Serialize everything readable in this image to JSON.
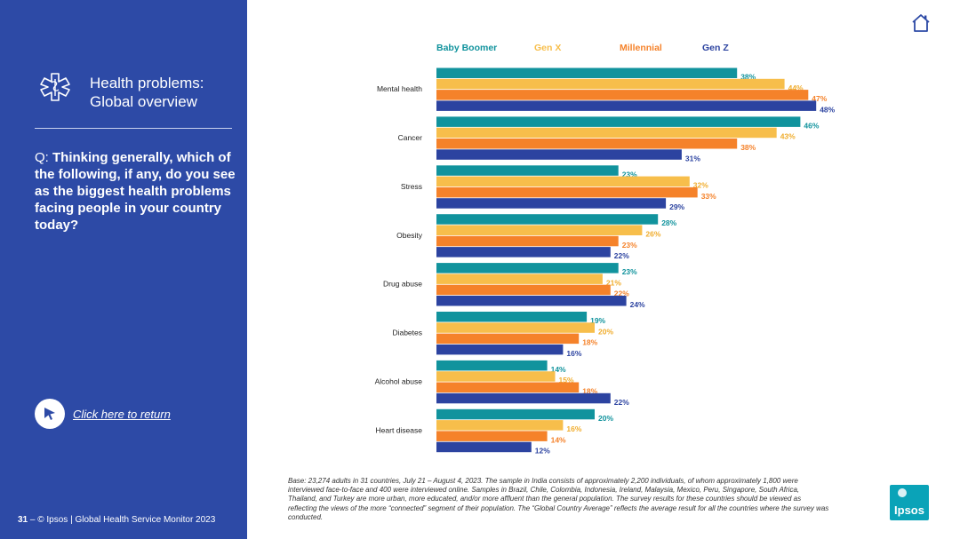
{
  "sidebar": {
    "title_line1": "Health problems:",
    "title_line2": "Global overview",
    "question_prefix": "Q: ",
    "question_text": "Thinking generally, which of the following, if any, do you see as the biggest health problems facing people in your country today?",
    "return_link": "Click here to return",
    "footer_page": "31",
    "footer_text": " – © Ipsos | Global Health Service Monitor 2023"
  },
  "base_note": "Base: 23,274 adults in 31 countries, July 21 – August 4, 2023. The sample in India consists of approximately 2,200 individuals, of whom approximately 1,800 were interviewed face-to-face and 400 were interviewed online. Samples in Brazil, Chile, Colombia, Indonesia, Ireland, Malaysia, Mexico, Peru, Singapore, South Africa, Thailand, and Turkey are more urban, more educated, and/or more affluent than the general population. The survey results for these countries should be viewed as reflecting the views of the more “connected” segment of their population. The “Global Country Average” reflects the average result for all the countries where the survey was conducted.",
  "logo": {
    "text": "Ipsos",
    "color": "#0aa3b8"
  },
  "colors": {
    "sidebar": "#2d4aa6",
    "text_dark": "#222222"
  },
  "chart_data": {
    "type": "bar",
    "orientation": "horizontal",
    "xlim": [
      0,
      50
    ],
    "value_suffix": "%",
    "categories": [
      "Mental health",
      "Cancer",
      "Stress",
      "Obesity",
      "Drug abuse",
      "Diabetes",
      "Alcohol abuse",
      "Heart disease"
    ],
    "series": [
      {
        "name": "Baby Boomer",
        "color": "#11939d",
        "values": [
          38,
          46,
          23,
          28,
          23,
          19,
          14,
          20
        ]
      },
      {
        "name": "Gen X",
        "color": "#f7be4b",
        "values": [
          44,
          43,
          32,
          26,
          21,
          20,
          15,
          16
        ]
      },
      {
        "name": "Millennial",
        "color": "#f5822a",
        "values": [
          47,
          38,
          33,
          23,
          22,
          18,
          18,
          14
        ]
      },
      {
        "name": "Gen Z",
        "color": "#2c43a0",
        "values": [
          48,
          31,
          29,
          22,
          24,
          16,
          22,
          12
        ]
      }
    ],
    "legend_position": "top"
  }
}
